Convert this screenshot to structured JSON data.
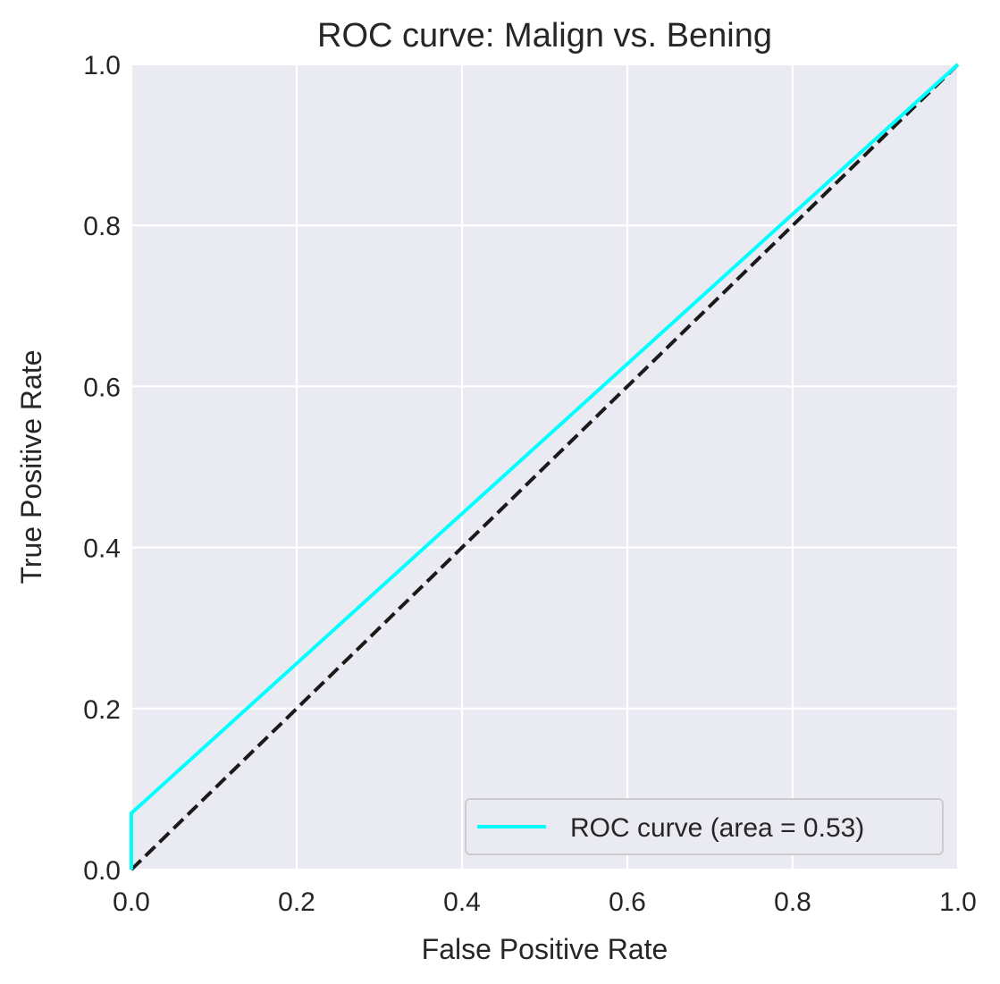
{
  "chart_data": {
    "type": "line",
    "title": "ROC curve: Malign vs. Bening",
    "xlabel": "False Positive Rate",
    "ylabel": "True Positive Rate",
    "xlim": [
      0.0,
      1.0
    ],
    "ylim": [
      0.0,
      1.0
    ],
    "xticks": [
      "0.0",
      "0.2",
      "0.4",
      "0.6",
      "0.8",
      "1.0"
    ],
    "yticks": [
      "0.0",
      "0.2",
      "0.4",
      "0.6",
      "0.8",
      "1.0"
    ],
    "grid": true,
    "legend_position": "lower-right",
    "series": [
      {
        "name": "ROC curve (area = 0.53)",
        "color": "#00ffff",
        "style": "solid",
        "x": [
          0.0,
          0.0,
          1.0
        ],
        "y": [
          0.0,
          0.07,
          1.0
        ]
      },
      {
        "color": "#1a1a1a",
        "style": "dashed",
        "x": [
          0.0,
          1.0
        ],
        "y": [
          0.0,
          1.0
        ]
      }
    ],
    "colors": {
      "plot_background": "#eaeaf2",
      "grid": "#ffffff",
      "text": "#262626"
    }
  }
}
